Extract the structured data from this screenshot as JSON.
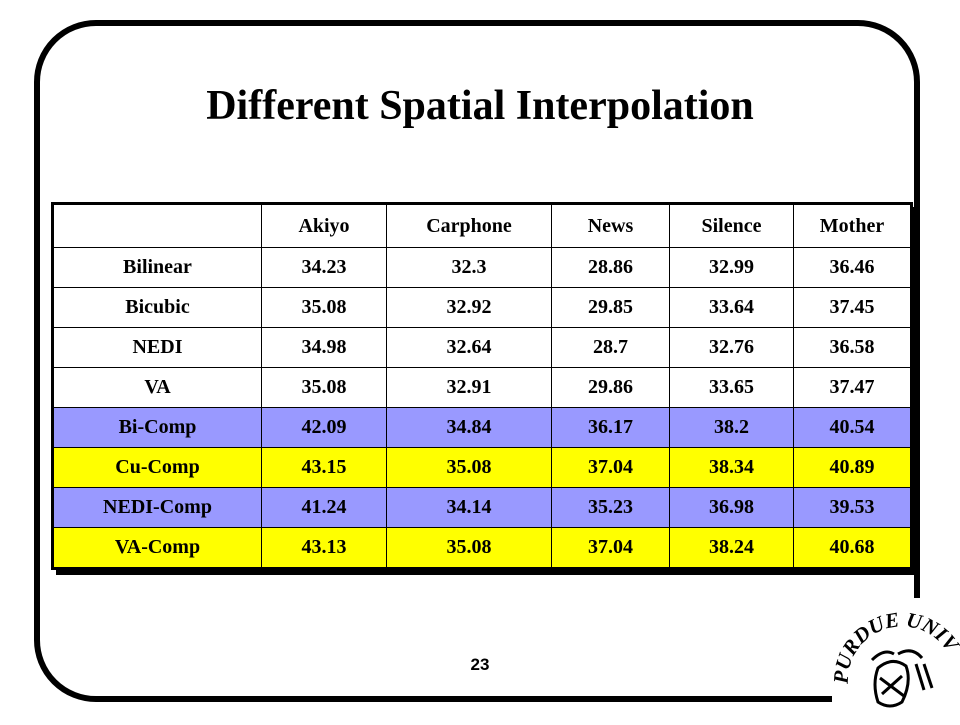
{
  "slide": {
    "title": "Different Spatial Interpolation",
    "page_number": "23"
  },
  "table": {
    "headers": [
      "",
      "Akiyo",
      "Carphone",
      "News",
      "Silence",
      "Mother"
    ],
    "rows": [
      {
        "cells": [
          "Bilinear",
          "34.23",
          "32.3",
          "28.86",
          "32.99",
          "36.46"
        ],
        "highlight": "none"
      },
      {
        "cells": [
          "Bicubic",
          "35.08",
          "32.92",
          "29.85",
          "33.64",
          "37.45"
        ],
        "highlight": "none"
      },
      {
        "cells": [
          "NEDI",
          "34.98",
          "32.64",
          "28.7",
          "32.76",
          "36.58"
        ],
        "highlight": "none"
      },
      {
        "cells": [
          "VA",
          "35.08",
          "32.91",
          "29.86",
          "33.65",
          "37.47"
        ],
        "highlight": "none"
      },
      {
        "cells": [
          "Bi-Comp",
          "42.09",
          "34.84",
          "36.17",
          "38.2",
          "40.54"
        ],
        "highlight": "blue"
      },
      {
        "cells": [
          "Cu-Comp",
          "43.15",
          "35.08",
          "37.04",
          "38.34",
          "40.89"
        ],
        "highlight": "yellow"
      },
      {
        "cells": [
          "NEDI-Comp",
          "41.24",
          "34.14",
          "35.23",
          "36.98",
          "39.53"
        ],
        "highlight": "blue"
      },
      {
        "cells": [
          "VA-Comp",
          "43.13",
          "35.08",
          "37.04",
          "38.24",
          "40.68"
        ],
        "highlight": "yellow"
      }
    ]
  },
  "colors": {
    "blue_highlight": "#9999ff",
    "yellow_highlight": "#ffff00"
  },
  "logo": {
    "icon": "purdue-university-seal-icon",
    "text": "PURDUE UNIVERSITY"
  }
}
